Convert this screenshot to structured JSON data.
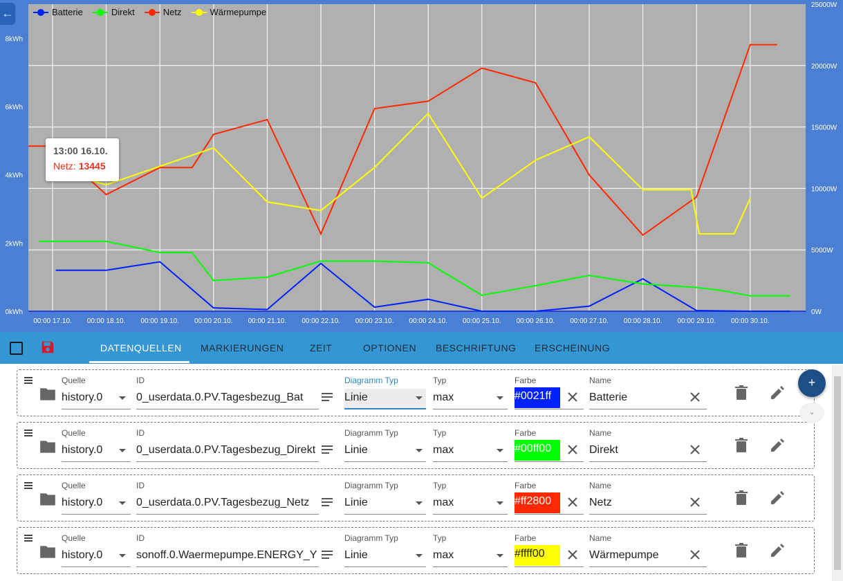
{
  "chart_data": {
    "type": "line",
    "categories": [
      "00:00 17.10.",
      "00:00 18.10.",
      "00:00 19.10.",
      "00:00 20.10.",
      "00:00 21.10.",
      "00:00 22.10.",
      "00:00 23.10.",
      "00:00 24.10.",
      "00:00 25.10.",
      "00:00 26.10.",
      "00:00 27.10.",
      "00:00 28.10.",
      "00:00 29.10.",
      "00:00 30.10."
    ],
    "y_left_ticks": [
      "0kWh",
      "2kWh",
      "4kWh",
      "6kWh",
      "8kWh"
    ],
    "y_right_ticks": [
      "0W",
      "5000W",
      "10000W",
      "15000W",
      "20000W",
      "25000W"
    ],
    "ylim_right": [
      0,
      25000
    ],
    "ylim_left_kwh": [
      0,
      9
    ],
    "grid": true,
    "legend_position": "top-left",
    "series": [
      {
        "name": "Batterie",
        "color": "#0021ff",
        "axis": "left",
        "x": [
          17.06,
          18,
          19,
          20,
          21,
          22,
          23,
          24,
          25,
          26,
          27,
          28,
          29,
          30,
          30.75
        ],
        "values": [
          1.2,
          1.2,
          1.45,
          0.1,
          0.05,
          1.4,
          0.12,
          0.35,
          0.0,
          0.0,
          0.15,
          0.95,
          0.02,
          0.0,
          0.0
        ]
      },
      {
        "name": "Direkt",
        "color": "#00ff00",
        "axis": "left",
        "x": [
          16.75,
          17,
          18,
          19,
          19.6,
          20,
          21,
          22,
          23,
          24,
          25,
          26,
          27,
          28,
          29,
          29.5,
          30,
          30.75
        ],
        "values": [
          2.05,
          2.05,
          2.05,
          1.72,
          1.72,
          0.9,
          1.0,
          1.47,
          1.47,
          1.42,
          0.47,
          0.75,
          1.05,
          0.8,
          0.7,
          0.6,
          0.45,
          0.45
        ]
      },
      {
        "name": "Netz",
        "color": "#ff2800",
        "axis": "right",
        "x": [
          16,
          16.75,
          17,
          18,
          19,
          19.6,
          20,
          21,
          22,
          23,
          24,
          25,
          26,
          27,
          28,
          29,
          30,
          30.5
        ],
        "values": [
          13445,
          13445,
          13445,
          9500,
          11700,
          11700,
          14400,
          15600,
          6300,
          16500,
          17100,
          19800,
          18600,
          11100,
          6200,
          9300,
          21700,
          21700
        ]
      },
      {
        "name": "Wärmepumpe",
        "color": "#ffff00",
        "axis": "right",
        "x": [
          17,
          18,
          19,
          20,
          21,
          22,
          23,
          24,
          25,
          26,
          27,
          28,
          28.9,
          29.05,
          29.7,
          30
        ],
        "values": [
          11500,
          10300,
          11800,
          13300,
          8900,
          8200,
          11700,
          16100,
          9200,
          12300,
          14200,
          9900,
          9900,
          6300,
          6300,
          9200
        ]
      }
    ]
  },
  "tooltip": {
    "time": "13:00 16.10.",
    "series": "Netz:",
    "value": "13445"
  },
  "toolbar": {
    "tabs": [
      "DATENQUELLEN",
      "MARKIERUNGEN",
      "ZEIT",
      "OPTIONEN",
      "BESCHRIFTUNG",
      "ERSCHEINUNG"
    ],
    "active_tab": "DATENQUELLEN"
  },
  "labels": {
    "source": "Quelle",
    "id": "ID",
    "chart_type": "Diagramm Typ",
    "type": "Typ",
    "color": "Farbe",
    "name": "Name"
  },
  "rows": [
    {
      "source": "history.0",
      "id": "0_userdata.0.PV.Tagesbezug_Bat",
      "chart_type": "Linie",
      "type": "max",
      "color": "#0021ff",
      "name": "Batterie"
    },
    {
      "source": "history.0",
      "id": "0_userdata.0.PV.Tagesbezug_Direkt",
      "chart_type": "Linie",
      "type": "max",
      "color": "#00ff00",
      "name": "Direkt"
    },
    {
      "source": "history.0",
      "id": "0_userdata.0.PV.Tagesbezug_Netz",
      "chart_type": "Linie",
      "type": "max",
      "color": "#ff2800",
      "name": "Netz"
    },
    {
      "source": "history.0",
      "id": "sonoff.0.Waermepumpe.ENERGY_Y",
      "chart_type": "Linie",
      "type": "max",
      "color": "#ffff00",
      "name": "Wärmepumpe"
    }
  ],
  "icons": {
    "add": "plus-icon",
    "collapse": "chevron-down-icon",
    "back": "arrow-left-icon"
  }
}
